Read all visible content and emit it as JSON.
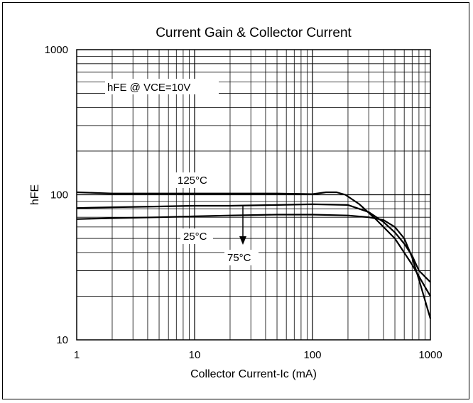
{
  "chart_data": {
    "type": "line",
    "title": "Current Gain & Collector Current",
    "xlabel": "Collector Current-Ic (mA)",
    "ylabel": "hFE",
    "xscale": "log",
    "yscale": "log",
    "xlim": [
      1,
      1000
    ],
    "ylim": [
      10,
      1000
    ],
    "x_ticks": [
      "1",
      "10",
      "100",
      "1000"
    ],
    "y_ticks": [
      "10",
      "100",
      "1000"
    ],
    "grid": true,
    "annotations": {
      "condition": "hFE @ VCE=10V",
      "t125": "125°C",
      "t25": "25°C",
      "t75": "75°C"
    },
    "series": [
      {
        "name": "125°C",
        "x": [
          1,
          2,
          5,
          10,
          20,
          50,
          100,
          130,
          160,
          190,
          250,
          350,
          500,
          700,
          1000
        ],
        "y": [
          104,
          102,
          102,
          102,
          102,
          102,
          101,
          104,
          104,
          100,
          86,
          67,
          50,
          33,
          20
        ]
      },
      {
        "name": "25°C",
        "x": [
          1,
          2,
          5,
          10,
          20,
          50,
          100,
          200,
          300,
          400,
          500,
          600,
          700,
          800,
          1000
        ],
        "y": [
          81,
          82,
          83,
          84,
          84,
          85,
          86,
          85,
          76,
          65,
          55,
          46,
          38,
          30,
          25
        ]
      },
      {
        "name": "75°C",
        "x": [
          1,
          2,
          5,
          10,
          20,
          50,
          100,
          200,
          300,
          400,
          500,
          600,
          700,
          800,
          1000
        ],
        "y": [
          68,
          69,
          70,
          71,
          72,
          73,
          73,
          72,
          70,
          67,
          60,
          50,
          37,
          26,
          14
        ]
      }
    ]
  }
}
